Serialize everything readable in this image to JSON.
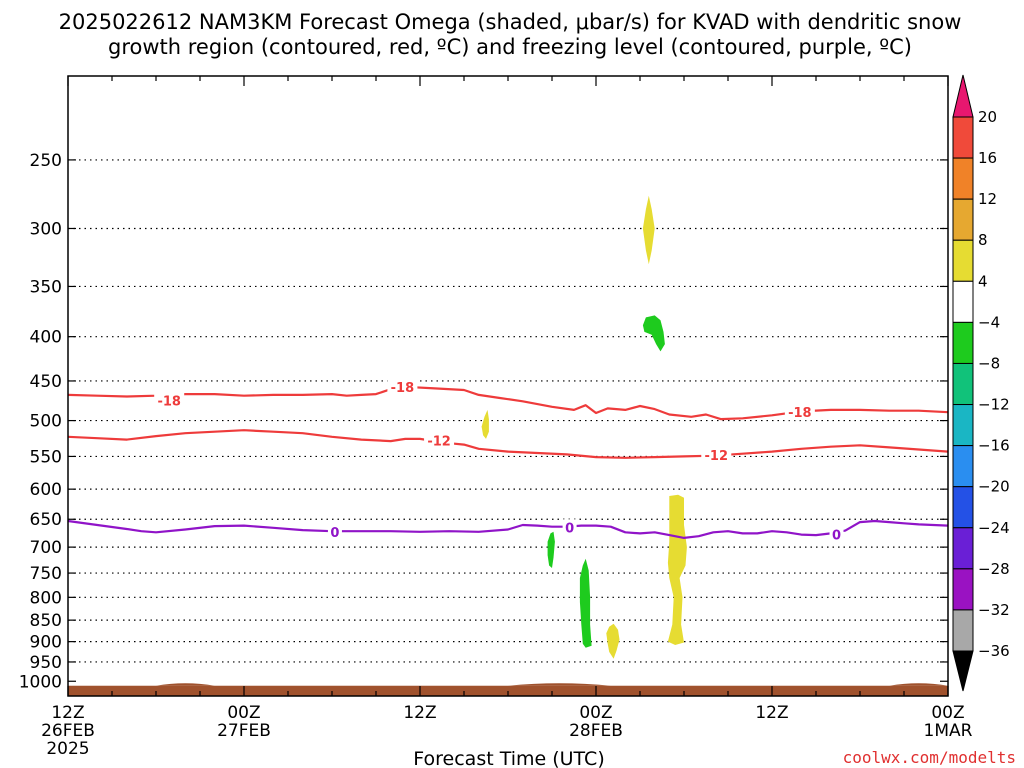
{
  "chart_data": {
    "type": "heatmap",
    "title_line1": "2025022612 NAM3KM Forecast Omega (shaded, μbar/s) for KVAD with dendritic snow",
    "title_line2": "growth region (contoured, red, ºC) and freezing level (contoured, purple, ºC)",
    "xlabel": "Forecast Time (UTC)",
    "credit": "coolwx.com/modelts",
    "x_range_hours": [
      0,
      60
    ],
    "y_range_hpa": [
      200,
      1040
    ],
    "x_ticks": [
      {
        "hour": 0,
        "l1": "12Z",
        "l2": "26FEB",
        "l3": "2025"
      },
      {
        "hour": 12,
        "l1": "00Z",
        "l2": "27FEB",
        "l3": ""
      },
      {
        "hour": 24,
        "l1": "12Z",
        "l2": "",
        "l3": ""
      },
      {
        "hour": 36,
        "l1": "00Z",
        "l2": "28FEB",
        "l3": ""
      },
      {
        "hour": 48,
        "l1": "12Z",
        "l2": "",
        "l3": ""
      },
      {
        "hour": 60,
        "l1": "00Z",
        "l2": "1MAR",
        "l3": ""
      }
    ],
    "y_ticks": [
      {
        "p": 250,
        "label": "250"
      },
      {
        "p": 300,
        "label": "300"
      },
      {
        "p": 350,
        "label": "350"
      },
      {
        "p": 400,
        "label": "400"
      },
      {
        "p": 450,
        "label": "450"
      },
      {
        "p": 500,
        "label": "500"
      },
      {
        "p": 550,
        "label": "550"
      },
      {
        "p": 600,
        "label": "600"
      },
      {
        "p": 650,
        "label": "650"
      },
      {
        "p": 700,
        "label": "700"
      },
      {
        "p": 750,
        "label": "750"
      },
      {
        "p": 800,
        "label": "800"
      },
      {
        "p": 850,
        "label": "850"
      },
      {
        "p": 900,
        "label": "900"
      },
      {
        "p": 950,
        "label": "950"
      },
      {
        "p": 1000,
        "label": "1000"
      }
    ],
    "colorbar": [
      {
        "label": "20",
        "color": "#e8176f"
      },
      {
        "label": "16",
        "color": "#f04a3a"
      },
      {
        "label": "12",
        "color": "#f08228"
      },
      {
        "label": "8",
        "color": "#e6a830"
      },
      {
        "label": "4",
        "color": "#e6dc32"
      },
      {
        "label": "−4",
        "color": "#ffffff"
      },
      {
        "label": "−8",
        "color": "#1ecb1e"
      },
      {
        "label": "−12",
        "color": "#11c27a"
      },
      {
        "label": "−16",
        "color": "#1ab6c4"
      },
      {
        "label": "−20",
        "color": "#2a8ef0"
      },
      {
        "label": "−24",
        "color": "#2451e6"
      },
      {
        "label": "−28",
        "color": "#6a1fd6"
      },
      {
        "label": "−32",
        "color": "#9a12c2"
      },
      {
        "label": "−36",
        "color": "#a8a8a8"
      }
    ],
    "colorbar_bottom_color": "#000000",
    "ground_color": "#a0522d",
    "line_colors": {
      "dgz": "#ee3b3b",
      "freezing": "#9014c8"
    },
    "contours": [
      {
        "name": "dgz-minus18",
        "type": "dgz",
        "label": "-18",
        "label_positions": [
          [
            6.9,
            474
          ],
          [
            22.8,
            457
          ],
          [
            49.9,
            489
          ]
        ],
        "points": [
          [
            0,
            467
          ],
          [
            2,
            468
          ],
          [
            4,
            469
          ],
          [
            6,
            468
          ],
          [
            8,
            466
          ],
          [
            10,
            466
          ],
          [
            12,
            468
          ],
          [
            14,
            467
          ],
          [
            16,
            467
          ],
          [
            18,
            466
          ],
          [
            19,
            468
          ],
          [
            20,
            467
          ],
          [
            21,
            466
          ],
          [
            22,
            460
          ],
          [
            23,
            457
          ],
          [
            25,
            459
          ],
          [
            27,
            461
          ],
          [
            28,
            467
          ],
          [
            29.5,
            471
          ],
          [
            31,
            475
          ],
          [
            33,
            482
          ],
          [
            34.5,
            486
          ],
          [
            35.3,
            480
          ],
          [
            36,
            490
          ],
          [
            36.8,
            484
          ],
          [
            38,
            486
          ],
          [
            39,
            481
          ],
          [
            40,
            485
          ],
          [
            41,
            492
          ],
          [
            42.5,
            495
          ],
          [
            43.5,
            492
          ],
          [
            44.5,
            498
          ],
          [
            46,
            497
          ],
          [
            48,
            493
          ],
          [
            50,
            488
          ],
          [
            52,
            486
          ],
          [
            54,
            486
          ],
          [
            56,
            487
          ],
          [
            58,
            487
          ],
          [
            60,
            489
          ]
        ]
      },
      {
        "name": "dgz-minus12",
        "type": "dgz",
        "label": "-12",
        "label_positions": [
          [
            25.3,
            527
          ],
          [
            44.2,
            548
          ]
        ],
        "points": [
          [
            0,
            522
          ],
          [
            2,
            524
          ],
          [
            4,
            526
          ],
          [
            6,
            521
          ],
          [
            8,
            517
          ],
          [
            10,
            515
          ],
          [
            12,
            513
          ],
          [
            14,
            515
          ],
          [
            16,
            517
          ],
          [
            18,
            522
          ],
          [
            20,
            526
          ],
          [
            22,
            528
          ],
          [
            23,
            525
          ],
          [
            24,
            525
          ],
          [
            25,
            528
          ],
          [
            26,
            531
          ],
          [
            27,
            533
          ],
          [
            28,
            539
          ],
          [
            30,
            543
          ],
          [
            32,
            545
          ],
          [
            34,
            547
          ],
          [
            36,
            551
          ],
          [
            38,
            552
          ],
          [
            40,
            551
          ],
          [
            42,
            550
          ],
          [
            44,
            549
          ],
          [
            46,
            546
          ],
          [
            48,
            543
          ],
          [
            50,
            539
          ],
          [
            52,
            536
          ],
          [
            54,
            534
          ],
          [
            56,
            537
          ],
          [
            58,
            540
          ],
          [
            60,
            543
          ]
        ]
      },
      {
        "name": "freezing-level-0",
        "type": "freezing",
        "label": "0",
        "label_positions": [
          [
            18.2,
            672
          ],
          [
            34.2,
            664
          ],
          [
            52.4,
            677
          ]
        ],
        "points": [
          [
            0,
            653
          ],
          [
            2,
            660
          ],
          [
            4,
            667
          ],
          [
            5,
            671
          ],
          [
            6,
            673
          ],
          [
            8,
            668
          ],
          [
            10,
            662
          ],
          [
            12,
            661
          ],
          [
            14,
            665
          ],
          [
            16,
            669
          ],
          [
            18,
            671
          ],
          [
            20,
            671
          ],
          [
            22,
            671
          ],
          [
            24,
            672
          ],
          [
            26,
            671
          ],
          [
            28,
            672
          ],
          [
            30,
            668
          ],
          [
            31,
            660
          ],
          [
            32,
            661
          ],
          [
            33,
            663
          ],
          [
            34,
            663
          ],
          [
            35,
            661
          ],
          [
            36,
            661
          ],
          [
            37,
            663
          ],
          [
            38,
            673
          ],
          [
            39,
            675
          ],
          [
            40,
            673
          ],
          [
            41,
            678
          ],
          [
            42,
            683
          ],
          [
            43,
            680
          ],
          [
            44,
            673
          ],
          [
            45,
            671
          ],
          [
            46,
            675
          ],
          [
            47,
            675
          ],
          [
            48,
            671
          ],
          [
            49,
            673
          ],
          [
            50,
            677
          ],
          [
            51,
            678
          ],
          [
            52,
            675
          ],
          [
            53,
            670
          ],
          [
            54,
            655
          ],
          [
            55,
            653
          ],
          [
            56,
            655
          ],
          [
            57,
            657
          ],
          [
            58,
            659
          ],
          [
            60,
            661
          ]
        ]
      }
    ],
    "omega_blobs": [
      {
        "name": "omega-blob-300",
        "color": "#e6dc32",
        "points": [
          [
            39.4,
            318
          ],
          [
            39.2,
            300
          ],
          [
            39.4,
            285
          ],
          [
            39.6,
            275
          ],
          [
            39.8,
            285
          ],
          [
            40,
            300
          ],
          [
            39.8,
            318
          ],
          [
            39.6,
            330
          ]
        ]
      },
      {
        "name": "omega-blob-400",
        "color": "#1ecb1e",
        "points": [
          [
            39.2,
            388
          ],
          [
            39.4,
            380
          ],
          [
            40,
            378
          ],
          [
            40.4,
            383
          ],
          [
            40.6,
            395
          ],
          [
            40.7,
            408
          ],
          [
            40.4,
            416
          ],
          [
            40.1,
            408
          ],
          [
            39.8,
            398
          ],
          [
            39.3,
            395
          ]
        ]
      },
      {
        "name": "omega-blob-500",
        "color": "#e6dc32",
        "points": [
          [
            28.2,
            508
          ],
          [
            28.4,
            495
          ],
          [
            28.6,
            486
          ],
          [
            28.7,
            498
          ],
          [
            28.7,
            515
          ],
          [
            28.5,
            525
          ],
          [
            28.3,
            520
          ]
        ]
      },
      {
        "name": "omega-blob-700",
        "color": "#1ecb1e",
        "points": [
          [
            32.7,
            690
          ],
          [
            32.9,
            675
          ],
          [
            33.1,
            672
          ],
          [
            33.2,
            690
          ],
          [
            33.1,
            720
          ],
          [
            33.0,
            740
          ],
          [
            32.8,
            735
          ],
          [
            32.7,
            715
          ]
        ]
      },
      {
        "name": "omega-blob-800",
        "color": "#1ecb1e",
        "points": [
          [
            34.9,
            760
          ],
          [
            35.1,
            735
          ],
          [
            35.3,
            722
          ],
          [
            35.5,
            745
          ],
          [
            35.6,
            800
          ],
          [
            35.6,
            860
          ],
          [
            35.7,
            910
          ],
          [
            35.3,
            915
          ],
          [
            35.1,
            905
          ],
          [
            35.0,
            860
          ],
          [
            34.9,
            810
          ]
        ]
      },
      {
        "name": "omega-blob-880",
        "color": "#e6dc32",
        "points": [
          [
            36.7,
            880
          ],
          [
            36.9,
            865
          ],
          [
            37.2,
            858
          ],
          [
            37.5,
            872
          ],
          [
            37.6,
            895
          ],
          [
            37.4,
            922
          ],
          [
            37.2,
            942
          ],
          [
            36.9,
            925
          ],
          [
            36.8,
            905
          ]
        ]
      },
      {
        "name": "omega-blob-750",
        "color": "#e6dc32",
        "points": [
          [
            41.0,
            640
          ],
          [
            41.0,
            611
          ],
          [
            41.6,
            609
          ],
          [
            42.0,
            614
          ],
          [
            42.0,
            660
          ],
          [
            42.2,
            700
          ],
          [
            42.1,
            735
          ],
          [
            41.7,
            760
          ],
          [
            41.9,
            800
          ],
          [
            41.8,
            860
          ],
          [
            42.0,
            902
          ],
          [
            41.4,
            908
          ],
          [
            40.9,
            900
          ],
          [
            41.2,
            860
          ],
          [
            41.3,
            800
          ],
          [
            41.0,
            760
          ],
          [
            40.9,
            730
          ],
          [
            41.0,
            690
          ]
        ]
      }
    ]
  }
}
